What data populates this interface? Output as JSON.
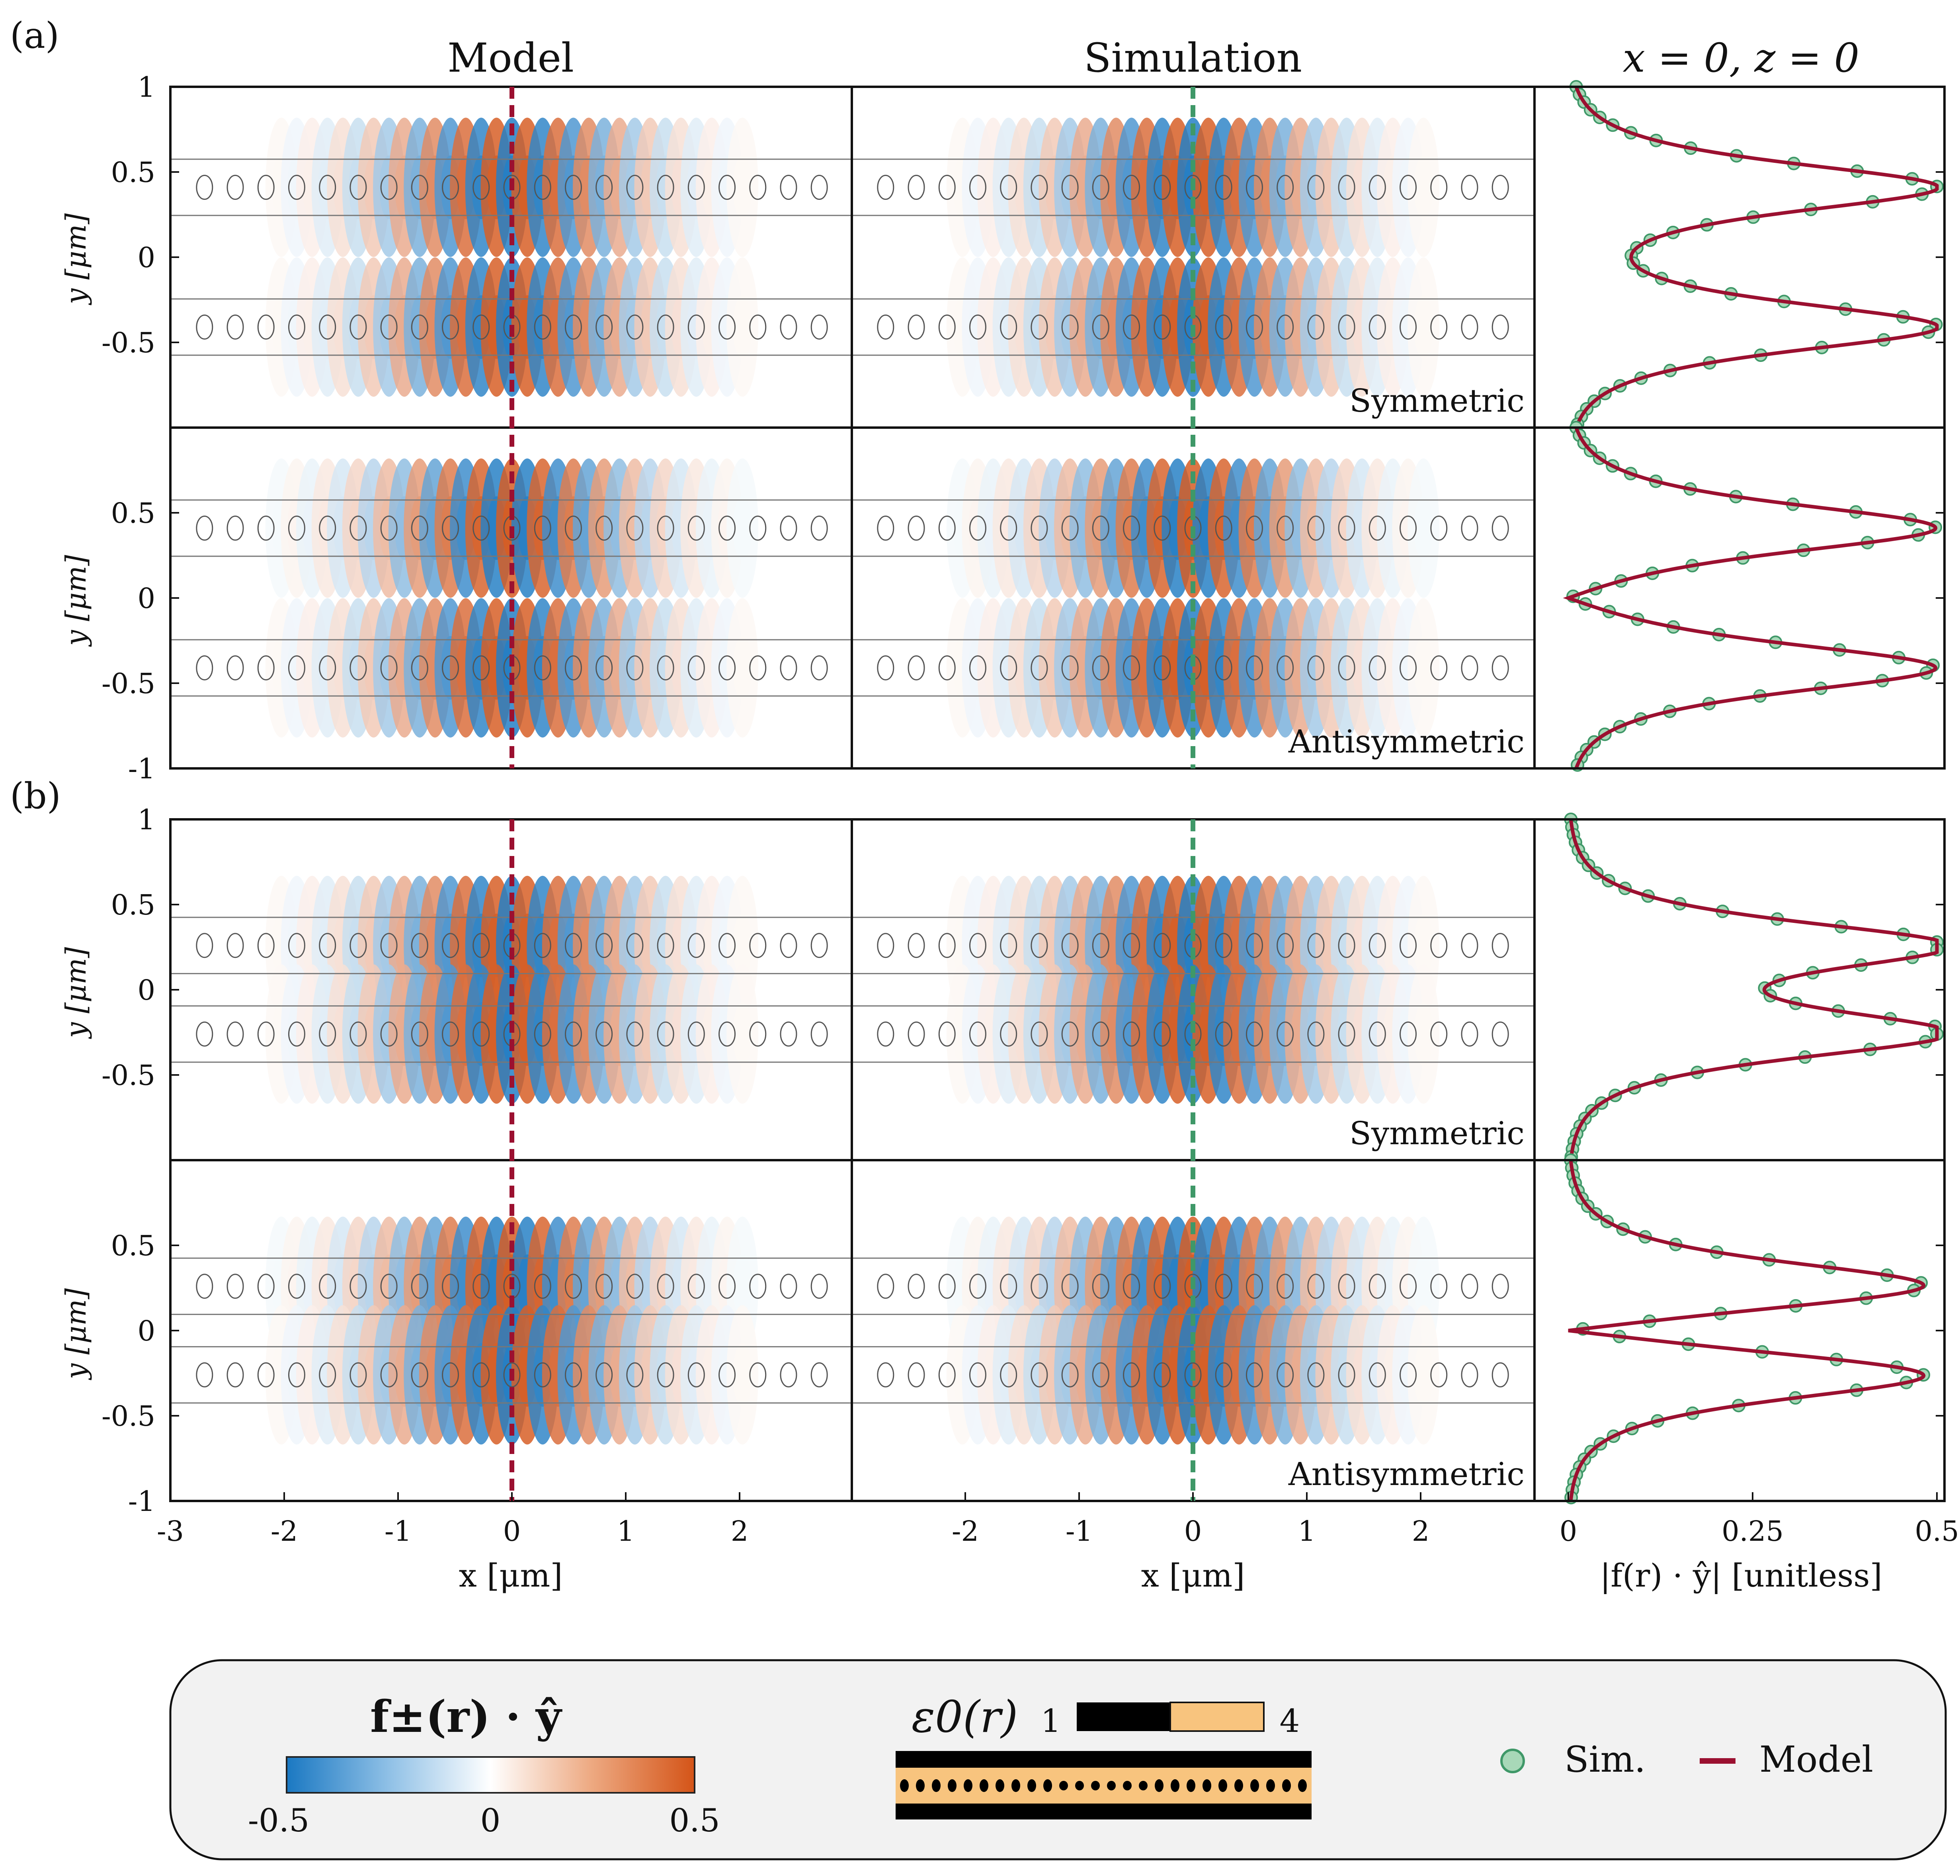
{
  "figure": {
    "panel_a_label": "(a)",
    "panel_b_label": "(b)",
    "col_model": "Model",
    "col_simulation": "Simulation",
    "col_profile": "x = 0, z = 0",
    "ylabel": "y [μm]",
    "xlabel": "x [μm]",
    "profile_xlabel": "|f(r) · ŷ| [unitless]",
    "rows": [
      {
        "size": "500 nm",
        "mode": "Symmetric"
      },
      {
        "size": "500 nm",
        "mode": "Antisymmetric"
      },
      {
        "size": "200 nm",
        "mode": "Symmetric"
      },
      {
        "size": "200 nm",
        "mode": "Antisymmetric"
      }
    ],
    "yticks_top": [
      "1",
      "0.5",
      "0",
      "-0.5"
    ],
    "yticks_lower": [
      "0.5",
      "0",
      "-0.5",
      "-1"
    ],
    "xticks_model": [
      "-3",
      "-2",
      "-1",
      "0",
      "1",
      "2"
    ],
    "xticks_sim": [
      "-2",
      "-1",
      "0",
      "1",
      "2"
    ],
    "xticks_profile": [
      "0",
      "0.25",
      "0.5"
    ]
  },
  "legend": {
    "field_title": "f±(r) · ŷ",
    "cbar_min": "-0.5",
    "cbar_mid": "0",
    "cbar_max": "0.5",
    "eps_title": "ε0(r)",
    "eps_min": "1",
    "eps_max": "4",
    "sim_label": "Sim.",
    "model_label": "Model"
  },
  "colors": {
    "positive": "#d45418",
    "negative": "#1a78c2",
    "model_line": "#9b1030",
    "sim_marker": "#a8d8b8",
    "sim_marker_edge": "#3f9868",
    "eps_high": "#f8c47e",
    "eps_low": "#000000"
  },
  "chart_data": {
    "type": "heatmap",
    "x_range_um": [
      -3,
      3
    ],
    "y_range_um": [
      -1,
      1
    ],
    "profile_x_range": [
      0,
      0.5
    ],
    "hole_pitch_um": 0.27,
    "rows": [
      {
        "gap": "500 nm",
        "mode": "Symmetric",
        "waveguide_centers_um": [
          0.41,
          -0.41
        ],
        "profile_peak": 0.5
      },
      {
        "gap": "500 nm",
        "mode": "Antisymmetric",
        "waveguide_centers_um": [
          0.41,
          -0.41
        ],
        "profile_peak": 0.5
      },
      {
        "gap": "200 nm",
        "mode": "Symmetric",
        "waveguide_centers_um": [
          0.26,
          -0.26
        ],
        "profile_peak": 0.5
      },
      {
        "gap": "200 nm",
        "mode": "Antisymmetric",
        "waveguide_centers_um": [
          0.26,
          -0.26
        ],
        "profile_peak": 0.5
      }
    ]
  }
}
